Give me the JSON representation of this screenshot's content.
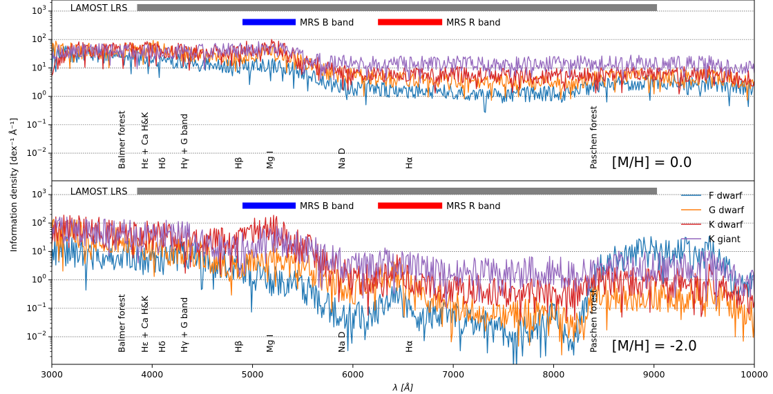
{
  "chart_data": {
    "type": "line",
    "shared": {
      "x_ticks": [
        3000,
        4000,
        5000,
        6000,
        7000,
        8000,
        9000,
        10000
      ],
      "x_tick_labels": [
        "3000",
        "4000",
        "5000",
        "6000",
        "7000",
        "8000",
        "9000",
        "10000"
      ],
      "xlabel": "λ [Å]",
      "ylabel": "Information density [dex⁻¹ Å⁻¹]",
      "xlim": [
        3000,
        10000
      ],
      "ylim": [
        0.001,
        3000
      ],
      "y_scale": "log",
      "y_ticks": [
        0.01,
        0.1,
        1,
        10,
        100,
        1000
      ],
      "y_tick_labels": [
        {
          "base": "10",
          "exp": "−2"
        },
        {
          "base": "10",
          "exp": "−1"
        },
        {
          "base": "10",
          "exp": "0"
        },
        {
          "base": "10",
          "exp": "1"
        },
        {
          "base": "10",
          "exp": "2"
        },
        {
          "base": "10",
          "exp": "3"
        }
      ],
      "grid": "horizontal dotted at major y ticks",
      "coverage_bars": [
        {
          "label": "LAMOST LRS",
          "x_range": [
            3850,
            9030
          ],
          "color": "#808080"
        },
        {
          "label": "MRS B band",
          "x_range": [
            4900,
            5430
          ],
          "color": "#0000ff"
        },
        {
          "label": "MRS R band",
          "x_range": [
            6250,
            6890
          ],
          "color": "#ff0000"
        }
      ],
      "line_annotations": [
        {
          "label": "Balmer forest",
          "x": 3700
        },
        {
          "label": "Hε + Ca H&K",
          "x": 3930
        },
        {
          "label": "Hδ",
          "x": 4100
        },
        {
          "label": "Hγ + G band",
          "x": 4320
        },
        {
          "label": "Hβ",
          "x": 4861
        },
        {
          "label": "Mg I",
          "x": 5175
        },
        {
          "label": "Na D",
          "x": 5890
        },
        {
          "label": "Hα",
          "x": 6563
        },
        {
          "label": "Paschen forest",
          "x": 8400
        }
      ]
    },
    "series_styles": [
      {
        "name": "F dwarf",
        "color": "#1f77b4"
      },
      {
        "name": "G dwarf",
        "color": "#ff7f0e"
      },
      {
        "name": "K dwarf",
        "color": "#d62728"
      },
      {
        "name": "K giant",
        "color": "#9467bd"
      }
    ],
    "legend_placement": "top-right of bottom panel",
    "panels": [
      {
        "annotation": "[M/H] =  0.0",
        "series": [
          {
            "name": "F dwarf",
            "x": [
              3000,
              3200,
              3400,
              3600,
              3800,
              4000,
              4200,
              4400,
              4600,
              4800,
              5000,
              5200,
              5400,
              5600,
              5800,
              6000,
              6200,
              6400,
              6600,
              6800,
              7000,
              7200,
              7400,
              7600,
              7800,
              8000,
              8200,
              8400,
              8600,
              8800,
              9000,
              9200,
              9400,
              9600,
              9800,
              10000
            ],
            "y": [
              35,
              30,
              28,
              25,
              25,
              22,
              18,
              15,
              13,
              12,
              11,
              12,
              9,
              6,
              2.5,
              2,
              2,
              1.5,
              1.5,
              1.5,
              1.5,
              1.3,
              1.2,
              1.2,
              1.2,
              1.2,
              1.1,
              2.5,
              3,
              3,
              3,
              3,
              3,
              3,
              2,
              2
            ]
          },
          {
            "name": "G dwarf",
            "x": [
              3000,
              3200,
              3400,
              3600,
              3800,
              4000,
              4200,
              4400,
              4600,
              4800,
              5000,
              5200,
              5400,
              5600,
              5800,
              6000,
              6200,
              6400,
              6600,
              6800,
              7000,
              7200,
              7400,
              7600,
              7800,
              8000,
              8200,
              8400,
              8600,
              8800,
              9000,
              9200,
              9400,
              9600,
              9800,
              10000
            ],
            "y": [
              50,
              45,
              40,
              38,
              40,
              50,
              35,
              28,
              25,
              22,
              30,
              35,
              20,
              12,
              6,
              5,
              5,
              4,
              4,
              4,
              4,
              3.5,
              3.5,
              3.5,
              3.5,
              3.5,
              3,
              4,
              5,
              5,
              5,
              5,
              5,
              5,
              4,
              3
            ]
          },
          {
            "name": "K dwarf",
            "x": [
              3000,
              3200,
              3400,
              3600,
              3800,
              4000,
              4200,
              4400,
              4600,
              4800,
              5000,
              5200,
              5400,
              5600,
              5800,
              6000,
              6200,
              6400,
              6600,
              6800,
              7000,
              7200,
              7400,
              7600,
              7800,
              8000,
              8200,
              8400,
              8600,
              8800,
              9000,
              9200,
              9400,
              9600,
              9800,
              10000
            ],
            "y": [
              10,
              50,
              45,
              40,
              45,
              45,
              42,
              35,
              40,
              40,
              50,
              55,
              30,
              15,
              8,
              7,
              6,
              6,
              6,
              6,
              6,
              5.5,
              5.5,
              5.5,
              5.5,
              5.5,
              5,
              6,
              6,
              6,
              6,
              6,
              6,
              6,
              5,
              4
            ]
          },
          {
            "name": "K giant",
            "x": [
              3000,
              3200,
              3400,
              3600,
              3800,
              4000,
              4200,
              4400,
              4600,
              4800,
              5000,
              5200,
              5400,
              5600,
              5800,
              6000,
              6200,
              6400,
              6600,
              6800,
              7000,
              7200,
              7400,
              7600,
              7800,
              8000,
              8200,
              8400,
              8600,
              8800,
              9000,
              9200,
              9400,
              9600,
              9800,
              10000
            ],
            "y": [
              40,
              40,
              38,
              38,
              38,
              38,
              35,
              35,
              38,
              40,
              45,
              50,
              30,
              20,
              15,
              15,
              14,
              14,
              14,
              14,
              14,
              14,
              14,
              14,
              14,
              14,
              14,
              14,
              15,
              15,
              14,
              14,
              14,
              14,
              12,
              10
            ]
          }
        ]
      },
      {
        "annotation": "[M/H] = -2.0",
        "series": [
          {
            "name": "F dwarf",
            "x": [
              3000,
              3200,
              3400,
              3600,
              3800,
              4000,
              4200,
              4400,
              4600,
              4800,
              5000,
              5200,
              5400,
              5600,
              5800,
              6000,
              6200,
              6400,
              6600,
              6800,
              7000,
              7200,
              7400,
              7600,
              7800,
              8000,
              8200,
              8400,
              8600,
              8800,
              9000,
              9200,
              9400,
              9600,
              9800,
              10000
            ],
            "y": [
              10,
              10,
              8,
              6,
              8,
              5,
              5,
              8,
              4,
              3,
              1.5,
              1,
              0.8,
              0.3,
              0.08,
              0.05,
              0.05,
              0.5,
              0.05,
              0.05,
              0.05,
              0.03,
              0.03,
              0.01,
              0.02,
              0.05,
              0.005,
              2,
              5,
              8,
              10,
              10,
              8,
              10,
              1,
              0.5
            ]
          },
          {
            "name": "G dwarf",
            "x": [
              3000,
              3200,
              3400,
              3600,
              3800,
              4000,
              4200,
              4400,
              4600,
              4800,
              5000,
              5200,
              5400,
              5600,
              5800,
              6000,
              6200,
              6400,
              6600,
              6800,
              7000,
              7200,
              7400,
              7600,
              7800,
              8000,
              8200,
              8400,
              8600,
              8800,
              9000,
              9200,
              9400,
              9600,
              9800,
              10000
            ],
            "y": [
              50,
              40,
              30,
              25,
              20,
              15,
              8,
              10,
              5,
              2,
              5,
              6,
              4,
              2,
              0.8,
              0.5,
              1,
              2,
              0.5,
              0.2,
              0.15,
              0.1,
              0.08,
              0.05,
              0.08,
              0.1,
              0.02,
              0.3,
              0.3,
              0.2,
              0.3,
              0.2,
              0.3,
              0.3,
              0.1,
              0.05
            ]
          },
          {
            "name": "K dwarf",
            "x": [
              3000,
              3200,
              3400,
              3600,
              3800,
              4000,
              4200,
              4400,
              4600,
              4800,
              5000,
              5200,
              5400,
              5600,
              5800,
              6000,
              6200,
              6400,
              6600,
              6800,
              7000,
              7200,
              7400,
              7600,
              7800,
              8000,
              8200,
              8400,
              8600,
              8800,
              9000,
              9200,
              9400,
              9600,
              9800,
              10000
            ],
            "y": [
              70,
              60,
              50,
              40,
              40,
              35,
              30,
              30,
              20,
              20,
              60,
              80,
              20,
              10,
              3,
              1,
              1,
              3,
              1,
              0.6,
              0.5,
              0.5,
              0.4,
              0.3,
              0.5,
              0.5,
              0.3,
              1,
              1,
              0.8,
              1,
              0.8,
              1,
              1,
              0.3,
              0.2
            ]
          },
          {
            "name": "K giant",
            "x": [
              3000,
              3200,
              3400,
              3600,
              3800,
              4000,
              4200,
              4400,
              4600,
              4800,
              5000,
              5200,
              5400,
              5600,
              5800,
              6000,
              6200,
              6400,
              6600,
              6800,
              7000,
              7200,
              7400,
              7600,
              7800,
              8000,
              8200,
              8400,
              8600,
              8800,
              9000,
              9200,
              9400,
              9600,
              9800,
              10000
            ],
            "y": [
              80,
              60,
              50,
              40,
              40,
              40,
              35,
              30,
              15,
              12,
              20,
              25,
              15,
              10,
              5,
              3,
              3,
              5,
              3,
              2,
              2,
              2,
              2,
              1.5,
              2,
              2,
              1.5,
              2,
              3,
              3,
              3,
              2.5,
              3,
              3,
              1,
              0.6
            ]
          }
        ]
      }
    ]
  }
}
